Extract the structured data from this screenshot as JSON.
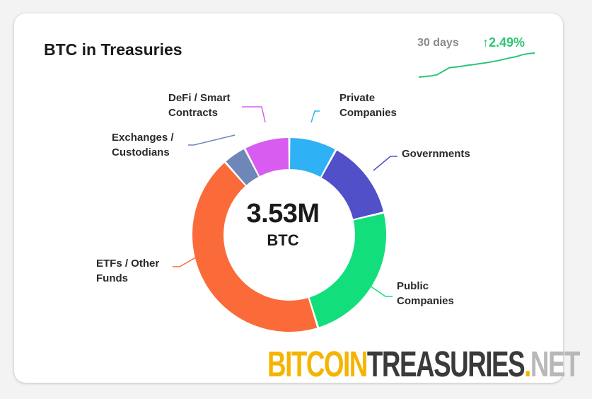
{
  "card": {
    "title": "BTC in Treasuries",
    "period_label": "30 days",
    "change": {
      "arrow": "↑",
      "value": "2.49%",
      "color": "#2dc574"
    },
    "center": {
      "value": "3.53M",
      "unit": "BTC"
    }
  },
  "sparkline": {
    "color": "#2dc574",
    "values": [
      0,
      0.2,
      0.5,
      1.0,
      2.5,
      4.0,
      4.3,
      4.6,
      5.0,
      5.3,
      5.7,
      6.1,
      6.5,
      7.0,
      7.6,
      8.2,
      8.7,
      9.5,
      10.0,
      10.2
    ]
  },
  "chart_data": {
    "type": "pie",
    "donut": true,
    "start_angle_deg": 0,
    "slices": [
      {
        "label": "Private Companies",
        "value": 8.0,
        "color": "#2fb1f5"
      },
      {
        "label": "Governments",
        "value": 13.3,
        "color": "#5150c9"
      },
      {
        "label": "Public Companies",
        "value": 23.9,
        "color": "#12df7b"
      },
      {
        "label": "ETFs / Other Funds",
        "value": 43.3,
        "color": "#fb6b39"
      },
      {
        "label": "Exchanges / Custodians",
        "value": 3.9,
        "color": "#6e87b8"
      },
      {
        "label": "DeFi / Smart Contracts",
        "value": 7.6,
        "color": "#d85cf0"
      }
    ]
  },
  "branding": {
    "part1": "BITCOIN",
    "part1_color": "#f5b400",
    "part2": "TREASURIES",
    "part2_color": "#3a3a3a",
    "part3": ".",
    "part3_color": "#f5b400",
    "part4": "NET",
    "part4_color": "#b8b8b8"
  }
}
